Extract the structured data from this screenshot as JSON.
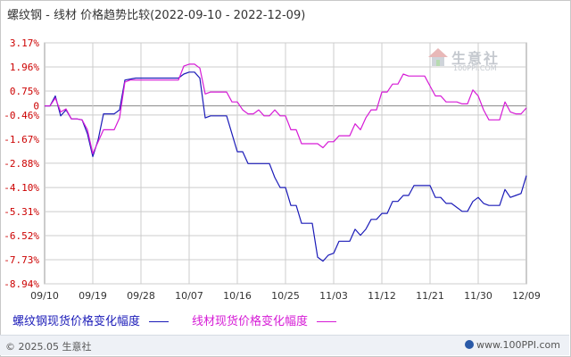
{
  "header": {
    "title": "螺纹钢 - 线材 价格趋势比较(2022-09-10 - 2022-12-09)"
  },
  "watermark": {
    "name": "生意社",
    "url": "100PPI.COM",
    "icon": "house-logo-icon"
  },
  "legend": [
    {
      "label": "螺纹钢现货价格变化幅度",
      "color": "#1b1bb8"
    },
    {
      "label": "线材现货价格变化幅度",
      "color": "#d61bd6"
    }
  ],
  "footer": {
    "copyright": "© 2025.05 生意社",
    "url": "www.100PPI.com",
    "icon": "globe-icon"
  },
  "colors": {
    "grid": "#cccccc",
    "zero_line": "#888888",
    "axis_text": "#cc0000",
    "x_text": "#333333"
  },
  "chart_data": {
    "type": "line",
    "title": "螺纹钢 - 线材 价格趋势比较(2022-09-10 - 2022-12-09)",
    "xlabel": "",
    "ylabel": "",
    "yunit": "%",
    "ylim": [
      -8.94,
      3.17
    ],
    "yticks": [
      "3.17%",
      "1.96%",
      "0.75%",
      "0",
      "-0.46%",
      "-1.67%",
      "-2.88%",
      "-4.10%",
      "-5.31%",
      "-6.52%",
      "-7.73%",
      "-8.94%"
    ],
    "ytick_values": [
      3.17,
      1.96,
      0.75,
      0,
      -0.46,
      -1.67,
      -2.88,
      -4.1,
      -5.31,
      -6.52,
      -7.73,
      -8.94
    ],
    "x_start": "2022-09-10",
    "x_end": "2022-12-09",
    "xticks": [
      "09/10",
      "09/19",
      "09/28",
      "10/07",
      "10/16",
      "10/25",
      "11/03",
      "11/12",
      "11/21",
      "11/30",
      "12/09"
    ],
    "grid": true,
    "legend_position": "bottom-left",
    "series": [
      {
        "name": "螺纹钢现货价格变化幅度",
        "color": "#1b1bb8",
        "points": [
          [
            "2022-09-10",
            0
          ],
          [
            "2022-09-11",
            0
          ],
          [
            "2022-09-12",
            0.5
          ],
          [
            "2022-09-13",
            -0.5
          ],
          [
            "2022-09-14",
            -0.2
          ],
          [
            "2022-09-15",
            -0.65
          ],
          [
            "2022-09-16",
            -0.65
          ],
          [
            "2022-09-17",
            -0.7
          ],
          [
            "2022-09-18",
            -1.4
          ],
          [
            "2022-09-19",
            -2.55
          ],
          [
            "2022-09-20",
            -1.7
          ],
          [
            "2022-09-21",
            -0.4
          ],
          [
            "2022-09-22",
            -0.4
          ],
          [
            "2022-09-23",
            -0.4
          ],
          [
            "2022-09-24",
            -0.2
          ],
          [
            "2022-09-25",
            1.3
          ],
          [
            "2022-09-26",
            1.35
          ],
          [
            "2022-09-27",
            1.4
          ],
          [
            "2022-09-28",
            1.4
          ],
          [
            "2022-09-29",
            1.4
          ],
          [
            "2022-09-30",
            1.4
          ],
          [
            "2022-10-01",
            1.4
          ],
          [
            "2022-10-02",
            1.4
          ],
          [
            "2022-10-03",
            1.4
          ],
          [
            "2022-10-04",
            1.4
          ],
          [
            "2022-10-05",
            1.4
          ],
          [
            "2022-10-06",
            1.6
          ],
          [
            "2022-10-07",
            1.7
          ],
          [
            "2022-10-08",
            1.7
          ],
          [
            "2022-10-09",
            1.4
          ],
          [
            "2022-10-10",
            -0.6
          ],
          [
            "2022-10-11",
            -0.5
          ],
          [
            "2022-10-12",
            -0.5
          ],
          [
            "2022-10-13",
            -0.5
          ],
          [
            "2022-10-14",
            -0.5
          ],
          [
            "2022-10-15",
            -1.4
          ],
          [
            "2022-10-16",
            -2.3
          ],
          [
            "2022-10-17",
            -2.3
          ],
          [
            "2022-10-18",
            -2.9
          ],
          [
            "2022-10-19",
            -2.9
          ],
          [
            "2022-10-20",
            -2.9
          ],
          [
            "2022-10-21",
            -2.9
          ],
          [
            "2022-10-22",
            -2.9
          ],
          [
            "2022-10-23",
            -3.6
          ],
          [
            "2022-10-24",
            -4.1
          ],
          [
            "2022-10-25",
            -4.1
          ],
          [
            "2022-10-26",
            -5.0
          ],
          [
            "2022-10-27",
            -5.0
          ],
          [
            "2022-10-28",
            -5.9
          ],
          [
            "2022-10-29",
            -5.9
          ],
          [
            "2022-10-30",
            -5.9
          ],
          [
            "2022-10-31",
            -7.6
          ],
          [
            "2022-11-01",
            -7.8
          ],
          [
            "2022-11-02",
            -7.5
          ],
          [
            "2022-11-03",
            -7.4
          ],
          [
            "2022-11-04",
            -6.8
          ],
          [
            "2022-11-05",
            -6.8
          ],
          [
            "2022-11-06",
            -6.8
          ],
          [
            "2022-11-07",
            -6.2
          ],
          [
            "2022-11-08",
            -6.5
          ],
          [
            "2022-11-09",
            -6.2
          ],
          [
            "2022-11-10",
            -5.7
          ],
          [
            "2022-11-11",
            -5.7
          ],
          [
            "2022-11-12",
            -5.4
          ],
          [
            "2022-11-13",
            -5.4
          ],
          [
            "2022-11-14",
            -4.8
          ],
          [
            "2022-11-15",
            -4.8
          ],
          [
            "2022-11-16",
            -4.5
          ],
          [
            "2022-11-17",
            -4.5
          ],
          [
            "2022-11-18",
            -4.0
          ],
          [
            "2022-11-19",
            -4.0
          ],
          [
            "2022-11-20",
            -4.0
          ],
          [
            "2022-11-21",
            -4.0
          ],
          [
            "2022-11-22",
            -4.6
          ],
          [
            "2022-11-23",
            -4.6
          ],
          [
            "2022-11-24",
            -4.9
          ],
          [
            "2022-11-25",
            -4.9
          ],
          [
            "2022-11-26",
            -5.1
          ],
          [
            "2022-11-27",
            -5.3
          ],
          [
            "2022-11-28",
            -5.3
          ],
          [
            "2022-11-29",
            -4.8
          ],
          [
            "2022-11-30",
            -4.6
          ],
          [
            "2022-12-01",
            -4.9
          ],
          [
            "2022-12-02",
            -5.0
          ],
          [
            "2022-12-03",
            -5.0
          ],
          [
            "2022-12-04",
            -5.0
          ],
          [
            "2022-12-05",
            -4.2
          ],
          [
            "2022-12-06",
            -4.6
          ],
          [
            "2022-12-07",
            -4.5
          ],
          [
            "2022-12-08",
            -4.4
          ],
          [
            "2022-12-09",
            -3.5
          ]
        ]
      },
      {
        "name": "线材现货价格变化幅度",
        "color": "#d61bd6",
        "points": [
          [
            "2022-09-10",
            0
          ],
          [
            "2022-09-11",
            0
          ],
          [
            "2022-09-12",
            0.4
          ],
          [
            "2022-09-13",
            -0.3
          ],
          [
            "2022-09-14",
            -0.15
          ],
          [
            "2022-09-15",
            -0.65
          ],
          [
            "2022-09-16",
            -0.65
          ],
          [
            "2022-09-17",
            -0.7
          ],
          [
            "2022-09-18",
            -1.2
          ],
          [
            "2022-09-19",
            -2.4
          ],
          [
            "2022-09-20",
            -1.8
          ],
          [
            "2022-09-21",
            -1.2
          ],
          [
            "2022-09-22",
            -1.2
          ],
          [
            "2022-09-23",
            -1.2
          ],
          [
            "2022-09-24",
            -0.6
          ],
          [
            "2022-09-25",
            1.2
          ],
          [
            "2022-09-26",
            1.3
          ],
          [
            "2022-09-27",
            1.3
          ],
          [
            "2022-09-28",
            1.3
          ],
          [
            "2022-09-29",
            1.3
          ],
          [
            "2022-09-30",
            1.3
          ],
          [
            "2022-10-01",
            1.3
          ],
          [
            "2022-10-02",
            1.3
          ],
          [
            "2022-10-03",
            1.3
          ],
          [
            "2022-10-04",
            1.3
          ],
          [
            "2022-10-05",
            1.3
          ],
          [
            "2022-10-06",
            2.0
          ],
          [
            "2022-10-07",
            2.1
          ],
          [
            "2022-10-08",
            2.1
          ],
          [
            "2022-10-09",
            1.9
          ],
          [
            "2022-10-10",
            0.6
          ],
          [
            "2022-10-11",
            0.7
          ],
          [
            "2022-10-12",
            0.7
          ],
          [
            "2022-10-13",
            0.7
          ],
          [
            "2022-10-14",
            0.7
          ],
          [
            "2022-10-15",
            0.2
          ],
          [
            "2022-10-16",
            0.2
          ],
          [
            "2022-10-17",
            -0.2
          ],
          [
            "2022-10-18",
            -0.4
          ],
          [
            "2022-10-19",
            -0.4
          ],
          [
            "2022-10-20",
            -0.2
          ],
          [
            "2022-10-21",
            -0.5
          ],
          [
            "2022-10-22",
            -0.5
          ],
          [
            "2022-10-23",
            -0.2
          ],
          [
            "2022-10-24",
            -0.5
          ],
          [
            "2022-10-25",
            -0.5
          ],
          [
            "2022-10-26",
            -1.2
          ],
          [
            "2022-10-27",
            -1.2
          ],
          [
            "2022-10-28",
            -1.9
          ],
          [
            "2022-10-29",
            -1.9
          ],
          [
            "2022-10-30",
            -1.9
          ],
          [
            "2022-10-31",
            -1.9
          ],
          [
            "2022-11-01",
            -2.1
          ],
          [
            "2022-11-02",
            -1.8
          ],
          [
            "2022-11-03",
            -1.8
          ],
          [
            "2022-11-04",
            -1.5
          ],
          [
            "2022-11-05",
            -1.5
          ],
          [
            "2022-11-06",
            -1.5
          ],
          [
            "2022-11-07",
            -0.9
          ],
          [
            "2022-11-08",
            -1.2
          ],
          [
            "2022-11-09",
            -0.6
          ],
          [
            "2022-11-10",
            -0.2
          ],
          [
            "2022-11-11",
            -0.2
          ],
          [
            "2022-11-12",
            0.7
          ],
          [
            "2022-11-13",
            0.7
          ],
          [
            "2022-11-14",
            1.1
          ],
          [
            "2022-11-15",
            1.1
          ],
          [
            "2022-11-16",
            1.6
          ],
          [
            "2022-11-17",
            1.5
          ],
          [
            "2022-11-18",
            1.5
          ],
          [
            "2022-11-19",
            1.5
          ],
          [
            "2022-11-20",
            1.5
          ],
          [
            "2022-11-21",
            1.0
          ],
          [
            "2022-11-22",
            0.5
          ],
          [
            "2022-11-23",
            0.5
          ],
          [
            "2022-11-24",
            0.2
          ],
          [
            "2022-11-25",
            0.2
          ],
          [
            "2022-11-26",
            0.2
          ],
          [
            "2022-11-27",
            0.1
          ],
          [
            "2022-11-28",
            0.1
          ],
          [
            "2022-11-29",
            0.8
          ],
          [
            "2022-11-30",
            0.5
          ],
          [
            "2022-12-01",
            -0.2
          ],
          [
            "2022-12-02",
            -0.7
          ],
          [
            "2022-12-03",
            -0.7
          ],
          [
            "2022-12-04",
            -0.7
          ],
          [
            "2022-12-05",
            0.2
          ],
          [
            "2022-12-06",
            -0.3
          ],
          [
            "2022-12-07",
            -0.4
          ],
          [
            "2022-12-08",
            -0.4
          ],
          [
            "2022-12-09",
            -0.1
          ]
        ]
      }
    ]
  }
}
